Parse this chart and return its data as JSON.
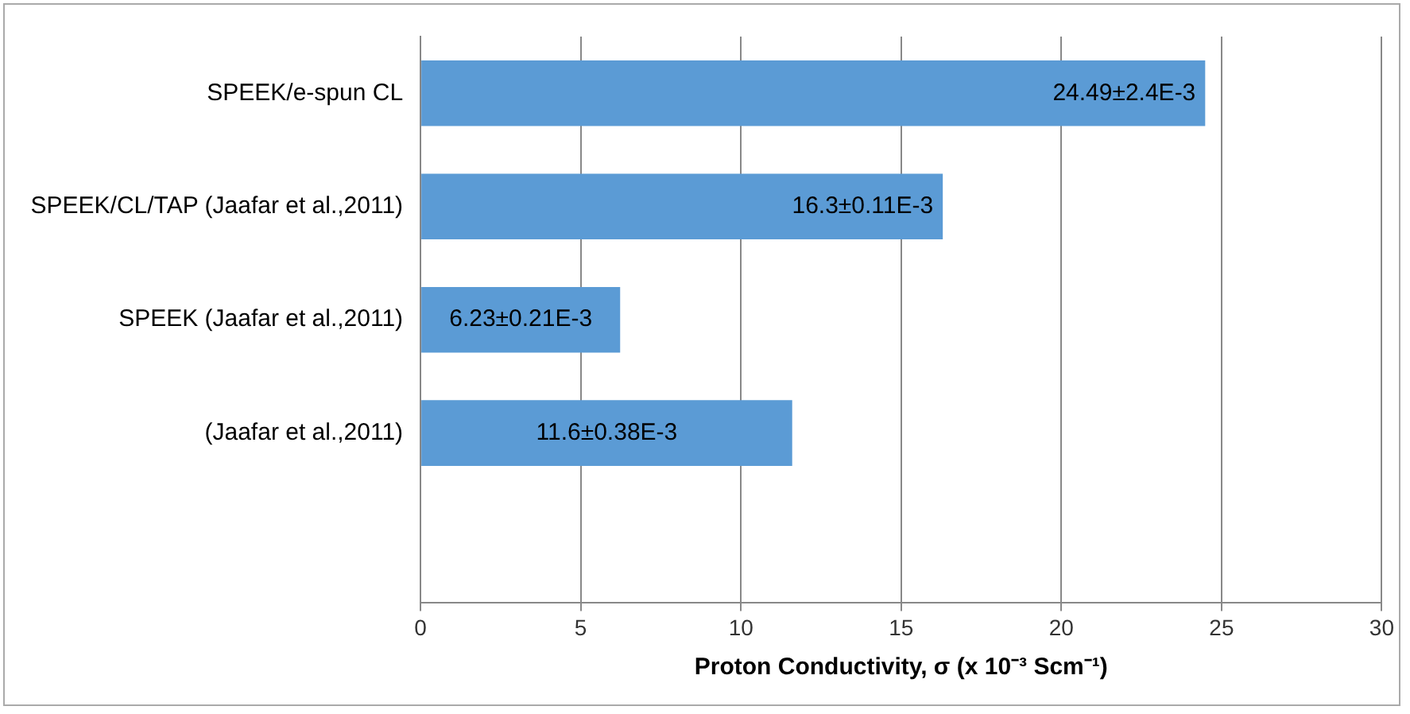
{
  "chart_data": {
    "type": "bar",
    "orientation": "horizontal",
    "xlabel": "Proton Conductivity, σ (x 10⁻³ Scm⁻¹)",
    "categories": [
      "SPEEK/e-spun CL",
      "SPEEK/CL/TAP (Jaafar et al.,2011)",
      "SPEEK (Jaafar et al.,2011)",
      "(Jaafar et al.,2011)",
      null
    ],
    "values": [
      24.49,
      16.3,
      6.23,
      11.6,
      null
    ],
    "value_labels": [
      "24.49±2.4E-3",
      "16.3±0.11E-3",
      "6.23±0.21E-3",
      "11.6±0.38E-3",
      null
    ],
    "color": "#5b9bd5",
    "xlim": [
      0,
      30
    ],
    "xticks": [
      0,
      5,
      10,
      15,
      20,
      25,
      30
    ],
    "grid": "x",
    "legend": false
  }
}
